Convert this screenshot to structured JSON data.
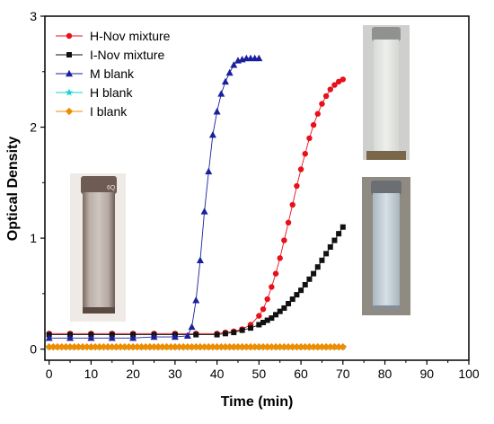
{
  "chart_data": {
    "type": "scatter",
    "xlabel": "Time (min)",
    "ylabel": "Optical Density",
    "xlim": [
      -1,
      100
    ],
    "ylim": [
      -0.1,
      3
    ],
    "xticks": [
      0,
      10,
      20,
      30,
      40,
      50,
      60,
      70,
      80,
      90,
      100
    ],
    "yticks": [
      0,
      1,
      2,
      3
    ],
    "legend_position": "top-left",
    "insets": [
      "cuvette photo (left)",
      "cuvette photo (top-right)",
      "cuvette photo (bottom-right)"
    ],
    "series": [
      {
        "name": "H-Nov mixture",
        "marker": "circle",
        "color": "#e8101a",
        "x": [
          0,
          5,
          10,
          15,
          20,
          25,
          30,
          35,
          40,
          42,
          44,
          46,
          48,
          50,
          51,
          52,
          53,
          54,
          55,
          56,
          57,
          58,
          59,
          60,
          61,
          62,
          63,
          64,
          65,
          66,
          67,
          68,
          69,
          70
        ],
        "y": [
          0.14,
          0.14,
          0.14,
          0.14,
          0.14,
          0.14,
          0.14,
          0.14,
          0.14,
          0.15,
          0.16,
          0.18,
          0.22,
          0.3,
          0.36,
          0.45,
          0.56,
          0.68,
          0.82,
          0.98,
          1.14,
          1.3,
          1.47,
          1.62,
          1.76,
          1.9,
          2.02,
          2.12,
          2.21,
          2.28,
          2.34,
          2.38,
          2.41,
          2.43
        ]
      },
      {
        "name": "I-Nov mixture",
        "marker": "square",
        "color": "#111111",
        "x": [
          0,
          5,
          10,
          15,
          20,
          25,
          30,
          35,
          40,
          42,
          44,
          46,
          48,
          50,
          51,
          52,
          53,
          54,
          55,
          56,
          57,
          58,
          59,
          60,
          61,
          62,
          63,
          64,
          65,
          66,
          67,
          68,
          69,
          70
        ],
        "y": [
          0.13,
          0.13,
          0.13,
          0.13,
          0.13,
          0.13,
          0.13,
          0.13,
          0.13,
          0.14,
          0.15,
          0.17,
          0.19,
          0.22,
          0.24,
          0.26,
          0.28,
          0.31,
          0.34,
          0.37,
          0.41,
          0.45,
          0.49,
          0.53,
          0.58,
          0.63,
          0.68,
          0.74,
          0.8,
          0.86,
          0.92,
          0.98,
          1.04,
          1.1
        ]
      },
      {
        "name": "M blank",
        "marker": "triangle",
        "color": "#1a1f9c",
        "x": [
          0,
          5,
          10,
          15,
          20,
          25,
          30,
          33,
          34,
          35,
          36,
          37,
          38,
          39,
          40,
          41,
          42,
          43,
          44,
          45,
          46,
          47,
          48,
          49,
          50
        ],
        "y": [
          0.1,
          0.1,
          0.1,
          0.1,
          0.1,
          0.11,
          0.11,
          0.12,
          0.2,
          0.44,
          0.8,
          1.24,
          1.6,
          1.93,
          2.14,
          2.3,
          2.41,
          2.49,
          2.56,
          2.6,
          2.61,
          2.62,
          2.62,
          2.62,
          2.62
        ]
      },
      {
        "name": "H blank",
        "marker": "star",
        "color": "#16d3d3",
        "x": [
          0,
          2,
          4,
          6,
          8,
          10,
          12,
          14,
          16,
          18,
          20,
          22,
          24,
          26,
          28,
          30,
          32,
          34,
          36,
          38,
          40,
          42,
          44,
          46,
          48,
          50,
          52,
          54,
          56,
          58,
          60,
          62,
          64,
          66,
          68,
          70
        ],
        "y": [
          0.02,
          0.02,
          0.02,
          0.02,
          0.02,
          0.02,
          0.02,
          0.02,
          0.02,
          0.02,
          0.02,
          0.02,
          0.02,
          0.02,
          0.02,
          0.02,
          0.02,
          0.02,
          0.02,
          0.02,
          0.02,
          0.02,
          0.02,
          0.02,
          0.02,
          0.02,
          0.02,
          0.02,
          0.02,
          0.02,
          0.02,
          0.02,
          0.02,
          0.02,
          0.02,
          0.02
        ]
      },
      {
        "name": "I blank",
        "marker": "diamond",
        "color": "#f08c00",
        "x": [
          0,
          1,
          2,
          3,
          4,
          5,
          6,
          7,
          8,
          9,
          10,
          11,
          12,
          13,
          14,
          15,
          16,
          17,
          18,
          19,
          20,
          21,
          22,
          23,
          24,
          25,
          26,
          27,
          28,
          29,
          30,
          31,
          32,
          33,
          34,
          35,
          36,
          37,
          38,
          39,
          40,
          41,
          42,
          43,
          44,
          45,
          46,
          47,
          48,
          49,
          50,
          51,
          52,
          53,
          54,
          55,
          56,
          57,
          58,
          59,
          60,
          61,
          62,
          63,
          64,
          65,
          66,
          67,
          68,
          69,
          70
        ],
        "y": [
          0.02,
          0.02,
          0.02,
          0.02,
          0.02,
          0.02,
          0.02,
          0.02,
          0.02,
          0.02,
          0.02,
          0.02,
          0.02,
          0.02,
          0.02,
          0.02,
          0.02,
          0.02,
          0.02,
          0.02,
          0.02,
          0.02,
          0.02,
          0.02,
          0.02,
          0.02,
          0.02,
          0.02,
          0.02,
          0.02,
          0.02,
          0.02,
          0.02,
          0.02,
          0.02,
          0.02,
          0.02,
          0.02,
          0.02,
          0.02,
          0.02,
          0.02,
          0.02,
          0.02,
          0.02,
          0.02,
          0.02,
          0.02,
          0.02,
          0.02,
          0.02,
          0.02,
          0.02,
          0.02,
          0.02,
          0.02,
          0.02,
          0.02,
          0.02,
          0.02,
          0.02,
          0.02,
          0.02,
          0.02,
          0.02,
          0.02,
          0.02,
          0.02,
          0.02,
          0.02,
          0.02
        ]
      }
    ]
  }
}
